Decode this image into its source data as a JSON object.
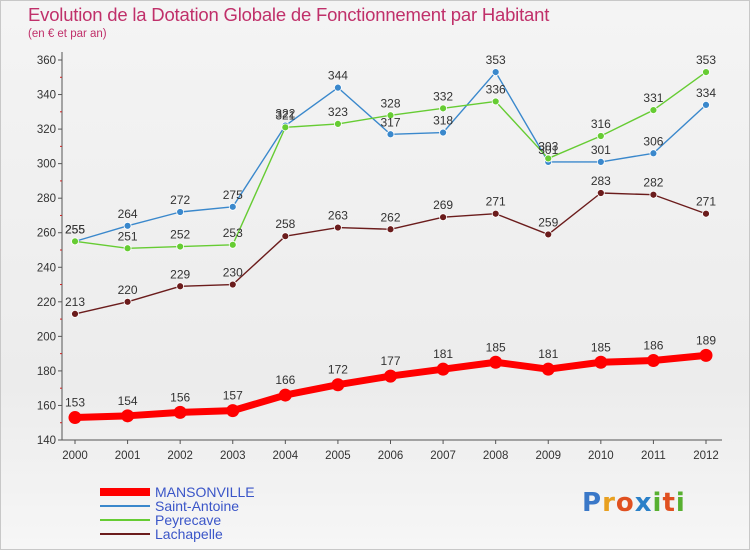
{
  "header": {
    "title": "Evolution de la Dotation Globale de Fonctionnement par Habitant",
    "subtitle": "(en € et par an)"
  },
  "logo": {
    "letters": [
      "P",
      "r",
      "o",
      "x",
      "i",
      "t",
      "i"
    ],
    "colors": [
      "#3a78c8",
      "#e8a020",
      "#e05020",
      "#2a80c8",
      "#58b030",
      "#e05020",
      "#58b030"
    ]
  },
  "chart_data": {
    "type": "line",
    "title": "Evolution de la Dotation Globale de Fonctionnement par Habitant",
    "subtitle": "(en € et par an)",
    "xlabel": "",
    "ylabel": "",
    "x": [
      "2000",
      "2001",
      "2002",
      "2003",
      "2004",
      "2005",
      "2006",
      "2007",
      "2008",
      "2009",
      "2010",
      "2011",
      "2012"
    ],
    "ylim": [
      140,
      360
    ],
    "yticks": [
      140,
      160,
      180,
      200,
      220,
      240,
      260,
      280,
      300,
      320,
      340,
      360
    ],
    "grid": false,
    "legend_position": "bottom-left",
    "series": [
      {
        "name": "MANSONVILLE",
        "color": "#ff0000",
        "emphasis": true,
        "values": [
          153,
          154,
          156,
          157,
          166,
          172,
          177,
          181,
          185,
          181,
          185,
          186,
          189
        ]
      },
      {
        "name": "Saint-Antoine",
        "color": "#3a88cc",
        "emphasis": false,
        "values": [
          255,
          264,
          272,
          275,
          322,
          344,
          317,
          318,
          353,
          301,
          301,
          306,
          334
        ]
      },
      {
        "name": "Peyrecave",
        "color": "#66cc33",
        "emphasis": false,
        "values": [
          255,
          251,
          252,
          253,
          321,
          323,
          328,
          332,
          336,
          303,
          316,
          331,
          353
        ]
      },
      {
        "name": "Lachapelle",
        "color": "#6b1c1c",
        "emphasis": false,
        "values": [
          213,
          220,
          229,
          230,
          258,
          263,
          262,
          269,
          271,
          259,
          283,
          282,
          271
        ]
      }
    ]
  }
}
